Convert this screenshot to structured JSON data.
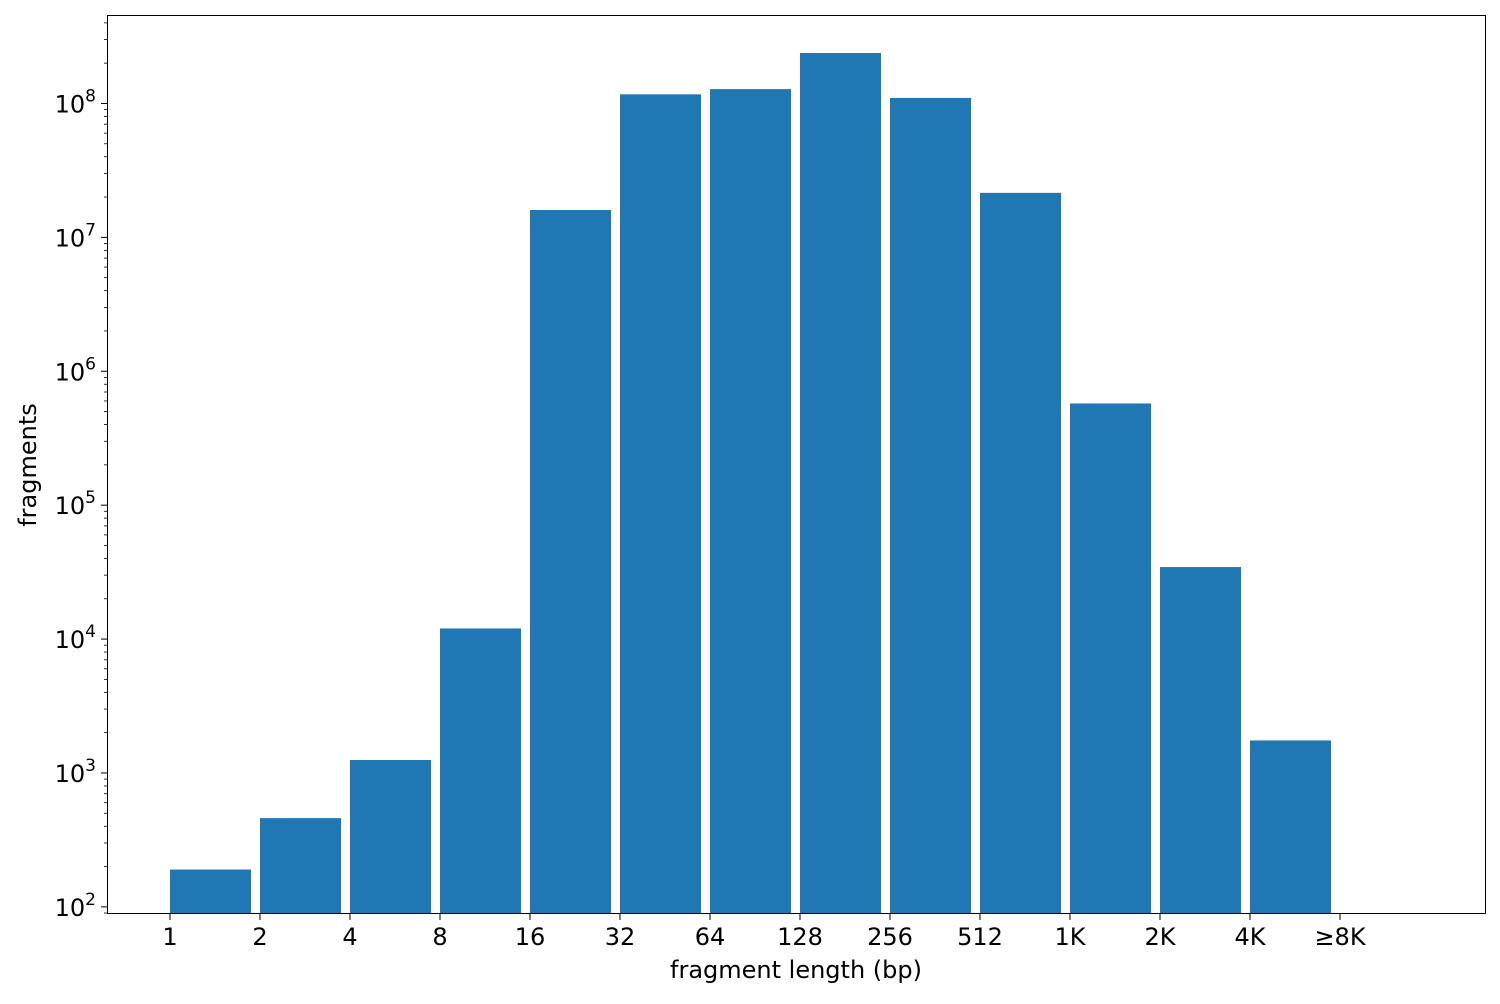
{
  "chart_data": {
    "type": "bar",
    "title": "",
    "xlabel": "fragment length (bp)",
    "ylabel": "fragments",
    "yscale": "log",
    "ylim": [
      90,
      450000000
    ],
    "y_ticks": [
      {
        "value": 100,
        "exp": "2"
      },
      {
        "value": 1000,
        "exp": "3"
      },
      {
        "value": 10000,
        "exp": "4"
      },
      {
        "value": 100000,
        "exp": "5"
      },
      {
        "value": 1000000,
        "exp": "6"
      },
      {
        "value": 10000000,
        "exp": "7"
      },
      {
        "value": 100000000,
        "exp": "8"
      }
    ],
    "y_tick_base": "10",
    "x_ticks": [
      "1",
      "2",
      "4",
      "8",
      "16",
      "32",
      "64",
      "128",
      "256",
      "512",
      "1K",
      "2K",
      "4K",
      "≥8K"
    ],
    "bars": [
      {
        "x_start": "1",
        "value": 190
      },
      {
        "x_start": "2",
        "value": 460
      },
      {
        "x_start": "4",
        "value": 1250
      },
      {
        "x_start": "8",
        "value": 12000
      },
      {
        "x_start": "16",
        "value": 16000000
      },
      {
        "x_start": "32",
        "value": 117000000
      },
      {
        "x_start": "64",
        "value": 128000000
      },
      {
        "x_start": "128",
        "value": 238000000
      },
      {
        "x_start": "256",
        "value": 110000000
      },
      {
        "x_start": "512",
        "value": 21500000
      },
      {
        "x_start": "1K",
        "value": 575000
      },
      {
        "x_start": "2K",
        "value": 34500
      },
      {
        "x_start": "4K",
        "value": 1750
      }
    ],
    "color": "#1f77b4",
    "grid": false,
    "legend": "none"
  }
}
